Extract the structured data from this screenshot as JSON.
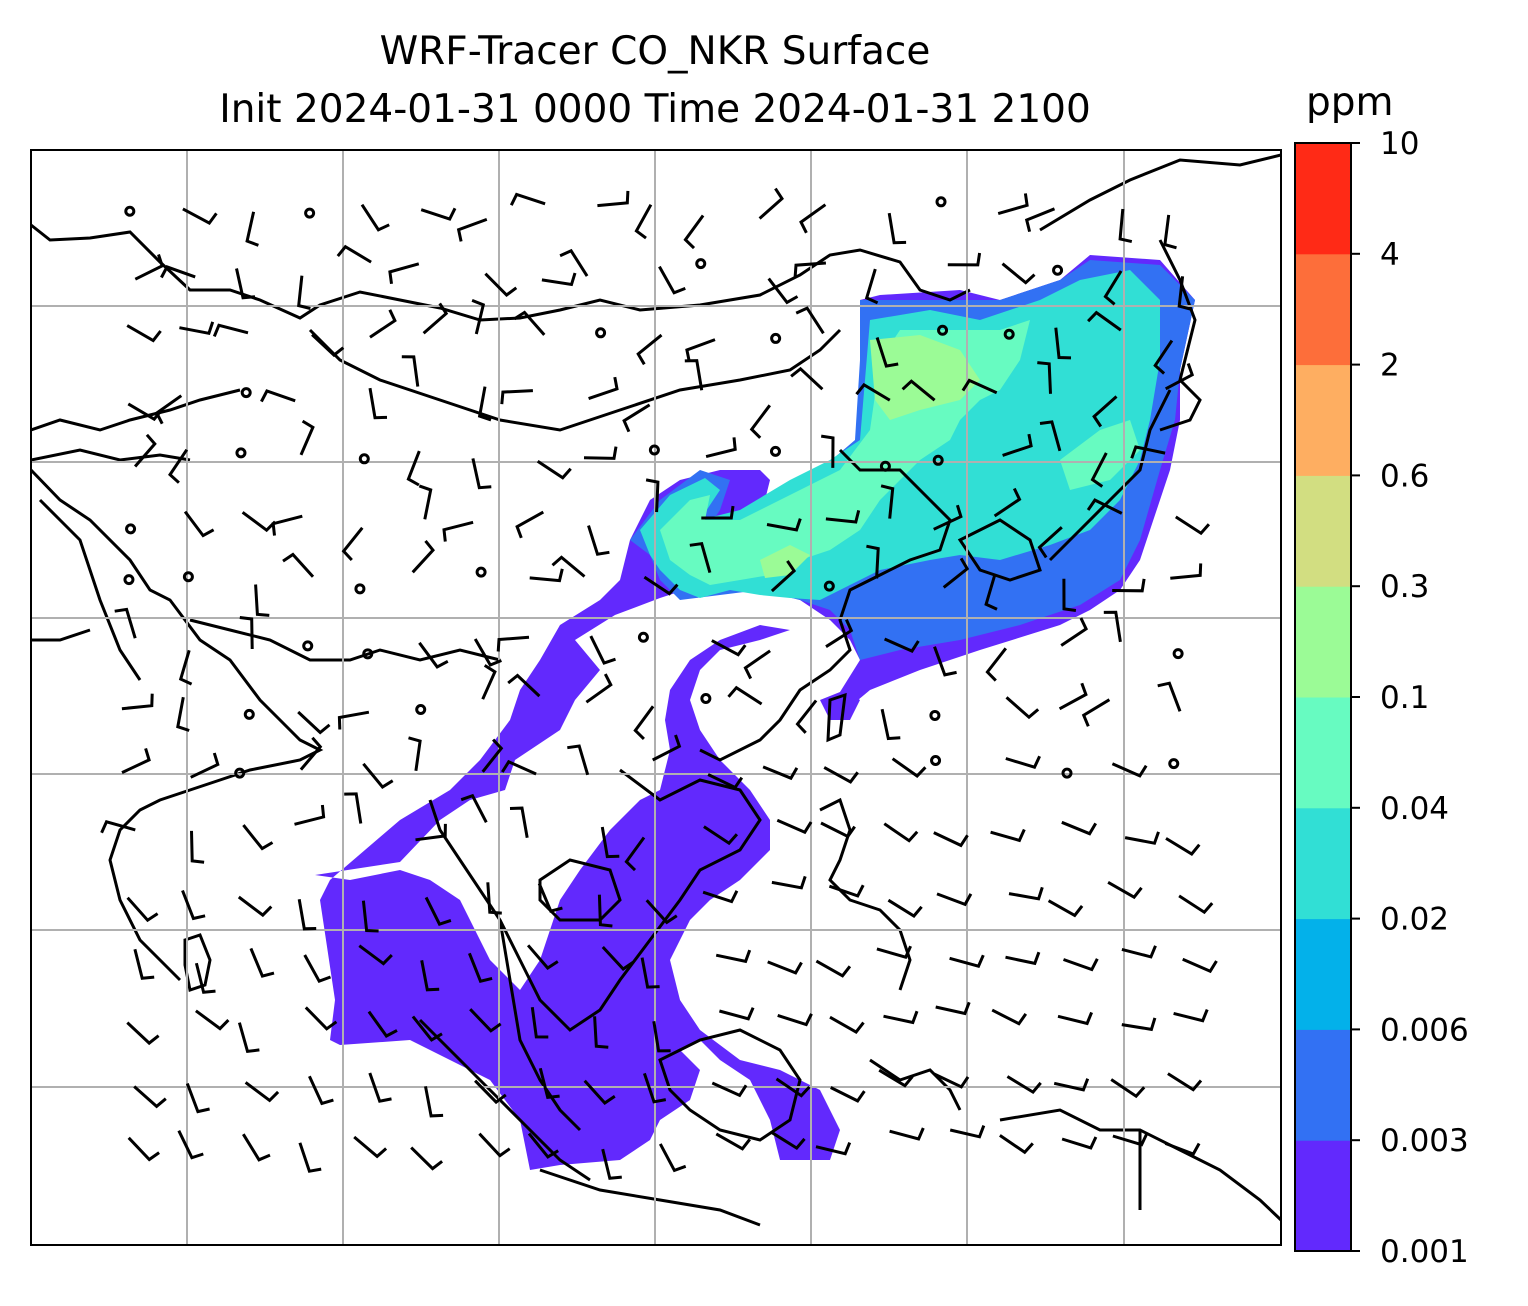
{
  "title_line1": "WRF-Tracer CO_NKR Surface",
  "title_line2": "Init 2024-01-31 0000 Time 2024-01-31 2100",
  "colorbar": {
    "unit": "ppm",
    "levels": [
      "0.001",
      "0.003",
      "0.006",
      "0.02",
      "0.04",
      "0.1",
      "0.3",
      "0.6",
      "2",
      "4",
      "10"
    ],
    "colors": [
      "#6229fd",
      "#3271f3",
      "#03b1ea",
      "#31dfd5",
      "#67fbc1",
      "#9bfb96",
      "#d2de81",
      "#feae61",
      "#fd6e3a",
      "#ff2a16"
    ]
  },
  "map": {
    "gridlines": true,
    "plume_colors": {
      "lowest": "#6229fd",
      "low": "#3271f3",
      "mid": "#31dfd5",
      "midhigh": "#67fbc1",
      "high": "#9bfb96"
    }
  }
}
